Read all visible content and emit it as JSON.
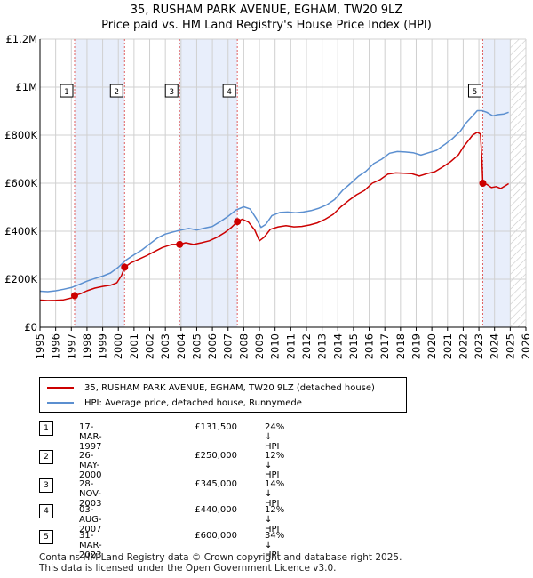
{
  "chart_data": {
    "type": "line",
    "title": "35, RUSHAM PARK AVENUE, EGHAM, TW20 9LZ",
    "subtitle": "Price paid vs. HM Land Registry's House Price Index (HPI)",
    "xlim": [
      1995,
      2026
    ],
    "ylim": [
      0,
      1200000
    ],
    "x_ticks": [
      "1995",
      "1996",
      "1997",
      "1998",
      "1999",
      "2000",
      "2001",
      "2002",
      "2003",
      "2004",
      "2005",
      "2006",
      "2007",
      "2008",
      "2009",
      "2010",
      "2011",
      "2012",
      "2013",
      "2014",
      "2015",
      "2016",
      "2017",
      "2018",
      "2019",
      "2020",
      "2021",
      "2022",
      "2023",
      "2024",
      "2025",
      "2026"
    ],
    "y_ticks": [
      {
        "value": 0,
        "label": "£0"
      },
      {
        "value": 200000,
        "label": "£200K"
      },
      {
        "value": 400000,
        "label": "£400K"
      },
      {
        "value": 600000,
        "label": "£600K"
      },
      {
        "value": 800000,
        "label": "£800K"
      },
      {
        "value": 1000000,
        "label": "£1M"
      },
      {
        "value": 1200000,
        "label": "£1.2M"
      }
    ],
    "grid": true,
    "shaded_periods": [
      [
        1997.21,
        2000.4
      ],
      [
        2003.91,
        2007.59
      ],
      [
        2023.25,
        2025.0
      ]
    ],
    "hatched_region": [
      2025.0,
      2026.0
    ],
    "series": [
      {
        "name": "35, RUSHAM PARK AVENUE, EGHAM, TW20 9LZ (detached house)",
        "color": "#cc0000",
        "points": [
          [
            1995.0,
            113000
          ],
          [
            1995.5,
            111000
          ],
          [
            1996.0,
            112000
          ],
          [
            1996.5,
            114000
          ],
          [
            1997.0,
            122000
          ],
          [
            1997.21,
            131500
          ],
          [
            1997.6,
            140000
          ],
          [
            1998.0,
            152000
          ],
          [
            1998.5,
            163000
          ],
          [
            1999.0,
            170000
          ],
          [
            1999.5,
            175000
          ],
          [
            1999.9,
            185000
          ],
          [
            2000.2,
            215000
          ],
          [
            2000.4,
            250000
          ],
          [
            2000.8,
            268000
          ],
          [
            2001.3,
            283000
          ],
          [
            2001.8,
            298000
          ],
          [
            2002.3,
            315000
          ],
          [
            2002.8,
            332000
          ],
          [
            2003.4,
            345000
          ],
          [
            2003.91,
            345000
          ],
          [
            2004.3,
            352000
          ],
          [
            2004.8,
            345000
          ],
          [
            2005.3,
            352000
          ],
          [
            2005.8,
            360000
          ],
          [
            2006.3,
            375000
          ],
          [
            2006.8,
            395000
          ],
          [
            2007.2,
            415000
          ],
          [
            2007.59,
            440000
          ],
          [
            2007.9,
            450000
          ],
          [
            2008.3,
            438000
          ],
          [
            2008.7,
            405000
          ],
          [
            2009.0,
            360000
          ],
          [
            2009.3,
            375000
          ],
          [
            2009.7,
            408000
          ],
          [
            2010.2,
            418000
          ],
          [
            2010.7,
            423000
          ],
          [
            2011.2,
            418000
          ],
          [
            2011.7,
            420000
          ],
          [
            2012.2,
            426000
          ],
          [
            2012.7,
            435000
          ],
          [
            2013.2,
            450000
          ],
          [
            2013.7,
            470000
          ],
          [
            2014.2,
            502000
          ],
          [
            2014.7,
            528000
          ],
          [
            2015.2,
            552000
          ],
          [
            2015.7,
            570000
          ],
          [
            2016.2,
            600000
          ],
          [
            2016.7,
            615000
          ],
          [
            2017.2,
            638000
          ],
          [
            2017.7,
            643000
          ],
          [
            2018.2,
            642000
          ],
          [
            2018.7,
            640000
          ],
          [
            2019.2,
            630000
          ],
          [
            2019.7,
            640000
          ],
          [
            2020.2,
            648000
          ],
          [
            2020.7,
            668000
          ],
          [
            2021.2,
            690000
          ],
          [
            2021.7,
            718000
          ],
          [
            2022.0,
            750000
          ],
          [
            2022.3,
            775000
          ],
          [
            2022.6,
            800000
          ],
          [
            2022.9,
            812000
          ],
          [
            2023.1,
            805000
          ],
          [
            2023.2,
            690000
          ],
          [
            2023.25,
            600000
          ],
          [
            2023.5,
            595000
          ],
          [
            2023.8,
            582000
          ],
          [
            2024.1,
            586000
          ],
          [
            2024.4,
            578000
          ],
          [
            2024.7,
            590000
          ],
          [
            2024.9,
            598000
          ]
        ]
      },
      {
        "name": "HPI: Average price, detached house, Runnymede",
        "color": "#5b8fd0",
        "points": [
          [
            1995.0,
            150000
          ],
          [
            1995.5,
            148000
          ],
          [
            1996.0,
            152000
          ],
          [
            1996.5,
            158000
          ],
          [
            1997.0,
            165000
          ],
          [
            1997.5,
            178000
          ],
          [
            1998.0,
            192000
          ],
          [
            1998.5,
            203000
          ],
          [
            1999.0,
            213000
          ],
          [
            1999.5,
            226000
          ],
          [
            2000.0,
            250000
          ],
          [
            2000.5,
            280000
          ],
          [
            2001.0,
            302000
          ],
          [
            2001.5,
            322000
          ],
          [
            2002.0,
            347000
          ],
          [
            2002.5,
            372000
          ],
          [
            2003.0,
            388000
          ],
          [
            2003.5,
            397000
          ],
          [
            2004.0,
            405000
          ],
          [
            2004.5,
            412000
          ],
          [
            2005.0,
            405000
          ],
          [
            2005.5,
            413000
          ],
          [
            2006.0,
            420000
          ],
          [
            2006.5,
            440000
          ],
          [
            2007.0,
            462000
          ],
          [
            2007.5,
            488000
          ],
          [
            2008.0,
            502000
          ],
          [
            2008.4,
            493000
          ],
          [
            2008.8,
            453000
          ],
          [
            2009.1,
            416000
          ],
          [
            2009.4,
            428000
          ],
          [
            2009.8,
            465000
          ],
          [
            2010.3,
            478000
          ],
          [
            2010.8,
            480000
          ],
          [
            2011.3,
            477000
          ],
          [
            2011.8,
            480000
          ],
          [
            2012.3,
            486000
          ],
          [
            2012.8,
            496000
          ],
          [
            2013.3,
            510000
          ],
          [
            2013.8,
            532000
          ],
          [
            2014.3,
            570000
          ],
          [
            2014.8,
            598000
          ],
          [
            2015.3,
            628000
          ],
          [
            2015.8,
            650000
          ],
          [
            2016.3,
            682000
          ],
          [
            2016.8,
            700000
          ],
          [
            2017.3,
            725000
          ],
          [
            2017.8,
            732000
          ],
          [
            2018.3,
            730000
          ],
          [
            2018.8,
            727000
          ],
          [
            2019.3,
            717000
          ],
          [
            2019.8,
            727000
          ],
          [
            2020.3,
            737000
          ],
          [
            2020.8,
            760000
          ],
          [
            2021.3,
            785000
          ],
          [
            2021.8,
            815000
          ],
          [
            2022.2,
            852000
          ],
          [
            2022.6,
            880000
          ],
          [
            2022.9,
            902000
          ],
          [
            2023.2,
            902000
          ],
          [
            2023.5,
            895000
          ],
          [
            2023.9,
            880000
          ],
          [
            2024.2,
            885000
          ],
          [
            2024.6,
            888000
          ],
          [
            2024.9,
            895000
          ]
        ]
      }
    ],
    "markers": [
      {
        "label": "1",
        "x": 1997.21,
        "y": 131500
      },
      {
        "label": "2",
        "x": 2000.4,
        "y": 250000
      },
      {
        "label": "3",
        "x": 2003.91,
        "y": 345000
      },
      {
        "label": "4",
        "x": 2007.59,
        "y": 440000
      },
      {
        "label": "5",
        "x": 2023.25,
        "y": 600000
      }
    ],
    "marker_label_value": 985000
  },
  "legend": {
    "red_label": "35, RUSHAM PARK AVENUE, EGHAM, TW20 9LZ (detached house)",
    "blue_label": "HPI: Average price, detached house, Runnymede",
    "red_color": "#cc0000",
    "blue_color": "#5b8fd0"
  },
  "transactions": [
    {
      "num": "1",
      "date": "17-MAR-1997",
      "price": "£131,500",
      "hpi": "24% ↓ HPI"
    },
    {
      "num": "2",
      "date": "26-MAY-2000",
      "price": "£250,000",
      "hpi": "12% ↓ HPI"
    },
    {
      "num": "3",
      "date": "28-NOV-2003",
      "price": "£345,000",
      "hpi": "14% ↓ HPI"
    },
    {
      "num": "4",
      "date": "03-AUG-2007",
      "price": "£440,000",
      "hpi": "12% ↓ HPI"
    },
    {
      "num": "5",
      "date": "31-MAR-2023",
      "price": "£600,000",
      "hpi": "34% ↓ HPI"
    }
  ],
  "footer": {
    "line1": "Contains HM Land Registry data © Crown copyright and database right 2025.",
    "line2": "This data is licensed under the Open Government Licence v3.0."
  }
}
